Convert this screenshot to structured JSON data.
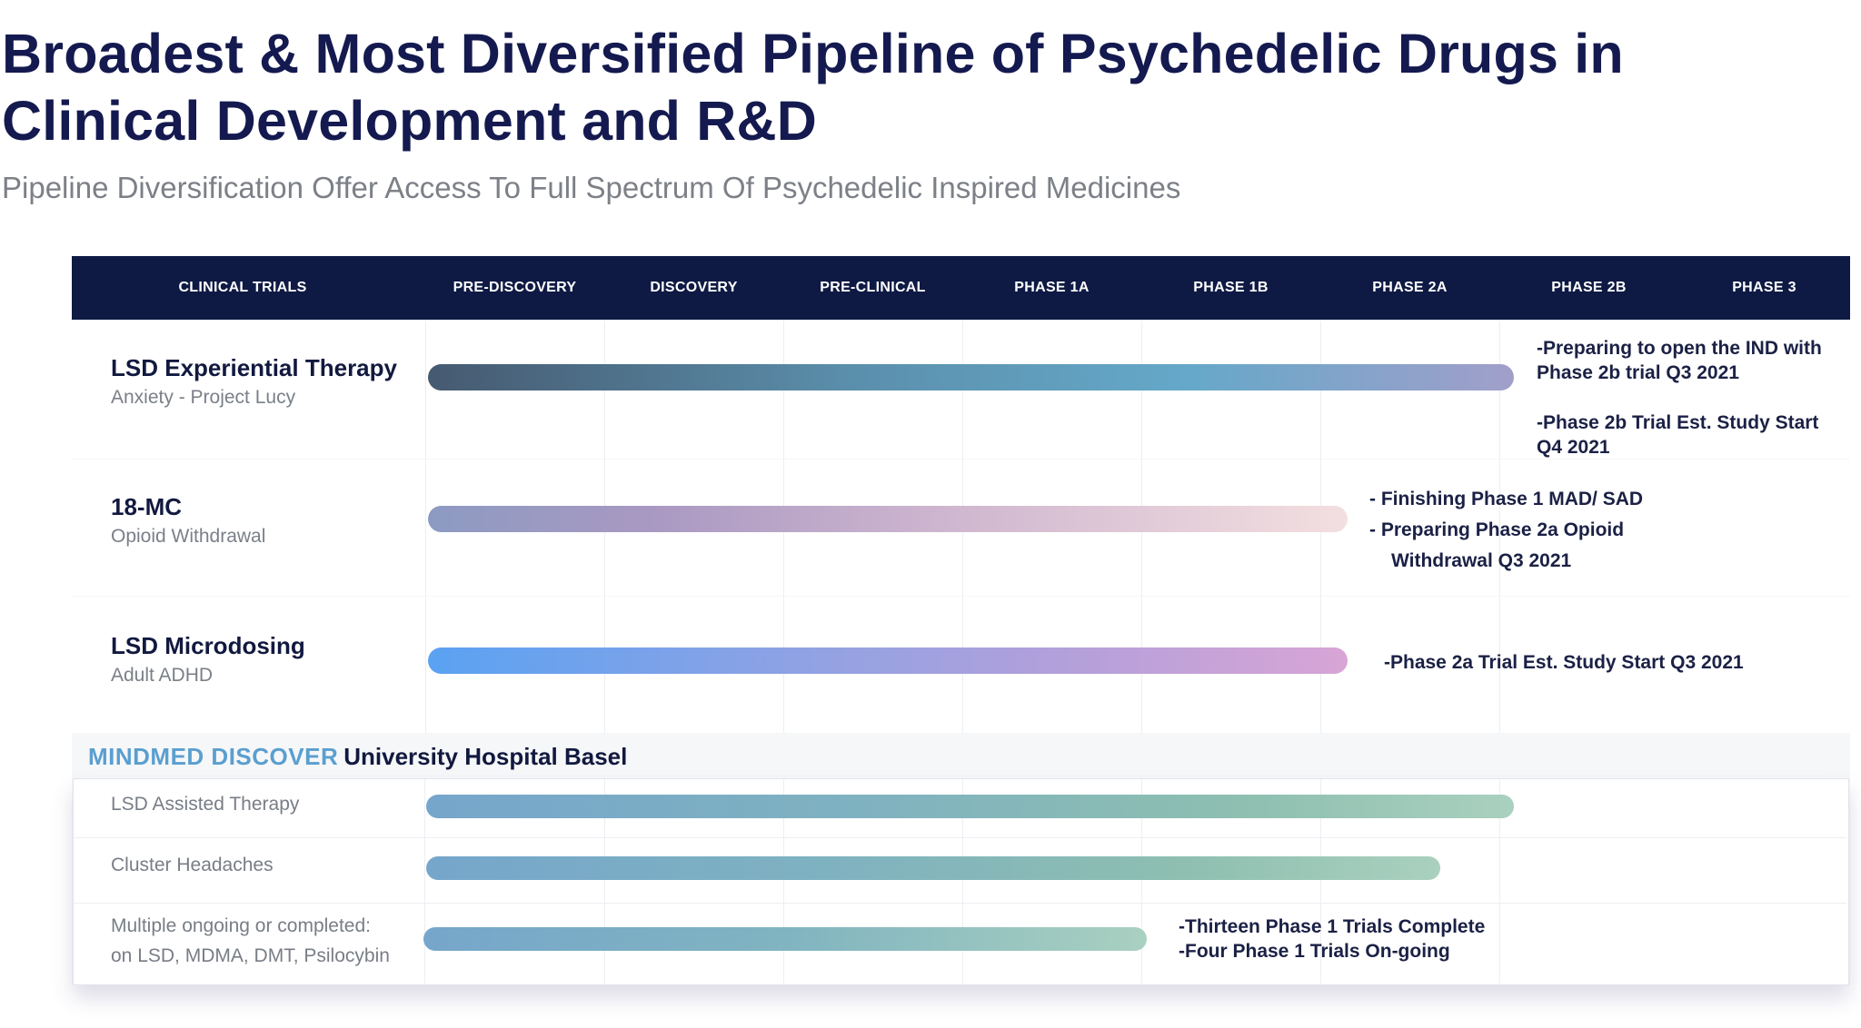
{
  "title": "Broadest & Most Diversified Pipeline of Psychedelic Drugs in Clinical Development and R&D",
  "subtitle": "Pipeline Diversification Offer Access To Full Spectrum Of Psychedelic Inspired Medicines",
  "header": {
    "col_trials": "CLINICAL TRIALS",
    "stages": [
      "PRE-DISCOVERY",
      "DISCOVERY",
      "PRE-CLINICAL",
      "PHASE 1A",
      "PHASE 1B",
      "PHASE 2A",
      "PHASE 2B",
      "PHASE 3"
    ]
  },
  "programs": [
    {
      "name": "LSD Experiential Therapy",
      "indication": "Anxiety - Project Lucy",
      "progress_stage": "PHASE 2B",
      "notes": [
        "-Preparing to open the IND with Phase 2b trial Q3 2021",
        "-Phase 2b Trial Est. Study Start Q4 2021"
      ]
    },
    {
      "name": "18-MC",
      "indication": "Opioid Withdrawal",
      "progress_stage": "PHASE 2A",
      "notes": [
        "-  Finishing Phase 1 MAD/ SAD",
        "-  Preparing Phase 2a Opioid",
        "Withdrawal Q3 2021"
      ]
    },
    {
      "name": "LSD Microdosing",
      "indication": "Adult ADHD",
      "progress_stage": "PHASE 2A",
      "notes": [
        "-Phase 2a Trial Est. Study Start Q3 2021"
      ]
    }
  ],
  "discover": {
    "brand": "MINDMED DISCOVER",
    "institution": "University Hospital Basel",
    "studies": [
      {
        "name": "LSD Assisted Therapy",
        "progress_stage": "PHASE 2B",
        "notes": []
      },
      {
        "name": "Cluster Headaches",
        "progress_stage": "PHASE 2A",
        "notes": []
      },
      {
        "name_lines": [
          "Multiple ongoing or completed:",
          "on LSD, MDMA, DMT, Psilocybin"
        ],
        "progress_stage": "PHASE 1A",
        "notes": [
          "-Thirteen Phase 1 Trials Complete",
          "-Four Phase 1 Trials On-going"
        ]
      }
    ]
  },
  "colors": {
    "header_bg": "#0e1a44",
    "title": "#141a4f",
    "discover_brand": "#5a9fcf"
  }
}
